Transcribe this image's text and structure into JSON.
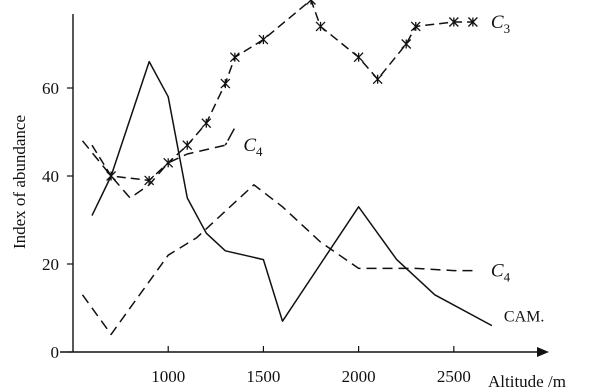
{
  "chart_data": {
    "type": "line",
    "xlabel": "Altitude /m",
    "ylabel": "Index of abundance",
    "xlim": [
      500,
      2900
    ],
    "ylim": [
      0,
      75
    ],
    "xticks": [
      1000,
      1500,
      2000,
      2500
    ],
    "yticks": [
      0,
      20,
      40,
      60
    ],
    "grid": false,
    "series": [
      {
        "name": "C3",
        "label_main": "C",
        "label_sub": "3",
        "style": "dash-cross",
        "points": [
          [
            600,
            47
          ],
          [
            700,
            40
          ],
          [
            900,
            39
          ],
          [
            1000,
            43
          ],
          [
            1100,
            47
          ],
          [
            1200,
            52
          ],
          [
            1300,
            61
          ],
          [
            1350,
            67
          ],
          [
            1500,
            71
          ],
          [
            1750,
            80
          ],
          [
            1800,
            74
          ],
          [
            2000,
            67
          ],
          [
            2100,
            62
          ],
          [
            2250,
            70
          ],
          [
            2300,
            74
          ],
          [
            2500,
            75
          ],
          [
            2600,
            75
          ]
        ]
      },
      {
        "name": "C4",
        "label_main": "C",
        "label_sub": "4",
        "style": "dash",
        "points": [
          [
            550,
            48
          ],
          [
            700,
            40
          ],
          [
            800,
            35
          ],
          [
            900,
            38
          ],
          [
            1000,
            43
          ],
          [
            1100,
            45
          ],
          [
            1300,
            47
          ],
          [
            1350,
            51
          ],
          [
            1300,
            47
          ]
        ]
      },
      {
        "name": "C4-lower",
        "label_main": "",
        "label_sub": "",
        "style": "dash",
        "points": [
          [
            550,
            13
          ],
          [
            700,
            4
          ],
          [
            850,
            13
          ],
          [
            1000,
            22
          ],
          [
            1150,
            26
          ],
          [
            1300,
            32
          ],
          [
            1450,
            38
          ],
          [
            1600,
            33
          ],
          [
            1800,
            25
          ],
          [
            2000,
            19
          ],
          [
            2300,
            19
          ],
          [
            2500,
            18.5
          ],
          [
            2600,
            18.5
          ]
        ]
      },
      {
        "name": "CAM.",
        "label_main": "CAM.",
        "label_sub": "",
        "style": "solid",
        "points": [
          [
            600,
            31
          ],
          [
            700,
            40
          ],
          [
            900,
            66
          ],
          [
            1000,
            58
          ],
          [
            1100,
            35
          ],
          [
            1200,
            27
          ],
          [
            1300,
            23
          ],
          [
            1400,
            22
          ],
          [
            1500,
            21
          ],
          [
            1600,
            7
          ],
          [
            1800,
            20
          ],
          [
            2000,
            33
          ],
          [
            2200,
            21
          ],
          [
            2400,
            13
          ],
          [
            2700,
            6
          ]
        ]
      }
    ]
  }
}
